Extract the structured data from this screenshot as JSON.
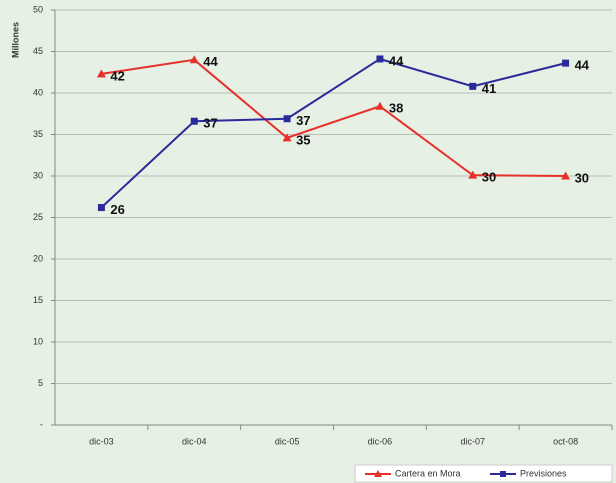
{
  "chart_data": {
    "type": "line",
    "y_label": "Millones",
    "categories": [
      "dic-03",
      "dic-04",
      "dic-05",
      "dic-06",
      "dic-07",
      "oct-08"
    ],
    "series": [
      {
        "name": "Cartera en Mora",
        "color": "#e8302a",
        "marker": "triangle",
        "values": [
          42.3,
          44,
          34.6,
          38.4,
          30.1,
          30
        ],
        "value_labels": [
          "42",
          "44",
          "35",
          "38",
          "30",
          "30"
        ]
      },
      {
        "name": "Previsiones",
        "color": "#2a2a9a",
        "marker": "square",
        "values": [
          26.2,
          36.6,
          36.9,
          44.1,
          40.8,
          43.6
        ],
        "value_labels": [
          "26",
          "37",
          "37",
          "44",
          "41",
          "44"
        ]
      }
    ],
    "ylim": [
      0,
      50
    ],
    "yticks": [
      {
        "value": 0,
        "label": "-"
      },
      5,
      10,
      15,
      20,
      25,
      30,
      35,
      40,
      45,
      50
    ],
    "grid": true,
    "legend": "bottom-right"
  }
}
